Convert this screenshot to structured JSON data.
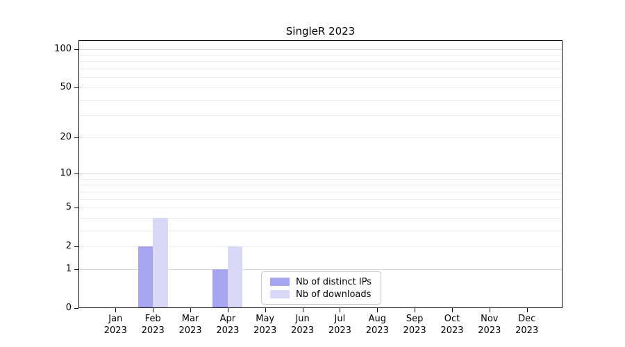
{
  "title": "SingleR 2023",
  "chart_data": {
    "type": "bar",
    "title": "SingleR 2023",
    "categories": [
      "Jan",
      "Feb",
      "Mar",
      "Apr",
      "May",
      "Jun",
      "Jul",
      "Aug",
      "Sep",
      "Oct",
      "Nov",
      "Dec"
    ],
    "year": "2023",
    "series": [
      {
        "name": "Nb of distinct IPs",
        "color": "#a5a5f2",
        "values": [
          0,
          2,
          0,
          1,
          0,
          0,
          0,
          0,
          0,
          0,
          0,
          0
        ]
      },
      {
        "name": "Nb of downloads",
        "color": "#d9d9f7",
        "values": [
          0,
          4,
          0,
          2,
          0,
          0,
          0,
          0,
          0,
          0,
          0,
          0
        ]
      }
    ],
    "yscale": "log1p",
    "ylim": [
      0,
      117
    ],
    "yticks": [
      0,
      1,
      2,
      5,
      10,
      20,
      50,
      100
    ],
    "grid": "horizontal",
    "grid_major": [
      1,
      10,
      100
    ],
    "grid_minor": [
      2,
      3,
      4,
      5,
      6,
      7,
      8,
      9,
      20,
      30,
      40,
      50,
      60,
      70,
      80,
      90
    ],
    "grid_major_color": "#d6d6d6",
    "grid_minor_color": "#ededed",
    "axis_color": "#000000",
    "legend_position": "lower center",
    "xlabel": "",
    "ylabel": ""
  }
}
